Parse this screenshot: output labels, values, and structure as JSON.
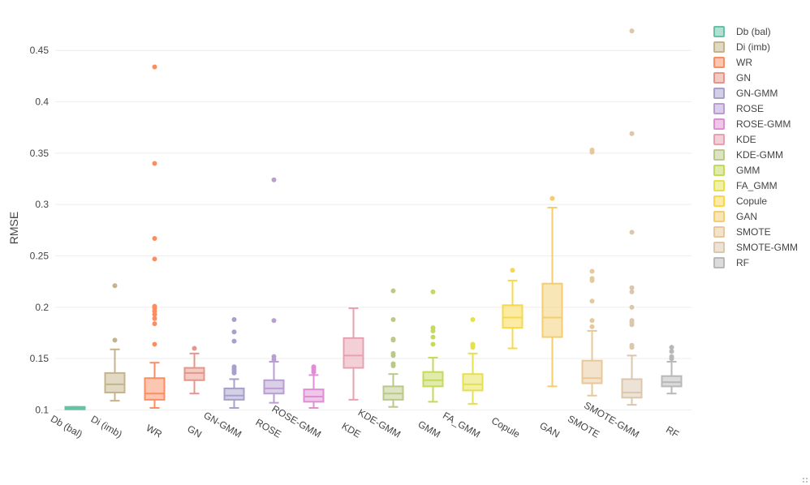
{
  "chart_data": {
    "type": "box",
    "title": "",
    "xlabel": "",
    "ylabel": "RMSE",
    "ylim": [
      0.0925,
      0.477
    ],
    "yticks": [
      0.1,
      0.15,
      0.2,
      0.25,
      0.3,
      0.35,
      0.4,
      0.45
    ],
    "ytick_labels": [
      "0.1",
      "0.15",
      "0.2",
      "0.25",
      "0.3",
      "0.35",
      "0.4",
      "0.45"
    ],
    "series": [
      {
        "name": "Db (bal)",
        "color": "#66c2a5",
        "q1": 0.1015,
        "median": 0.102,
        "q3": 0.103,
        "whisker_low": 0.1015,
        "whisker_high": 0.103,
        "outliers": []
      },
      {
        "name": "Di (imb)",
        "color": "#c5b48a",
        "q1": 0.117,
        "median": 0.125,
        "q3": 0.136,
        "whisker_low": 0.109,
        "whisker_high": 0.159,
        "outliers": [
          0.168,
          0.221
        ]
      },
      {
        "name": "WR",
        "color": "#fc8d62",
        "q1": 0.11,
        "median": 0.116,
        "q3": 0.131,
        "whisker_low": 0.102,
        "whisker_high": 0.146,
        "outliers": [
          0.164,
          0.184,
          0.189,
          0.193,
          0.196,
          0.199,
          0.201,
          0.247,
          0.267,
          0.34,
          0.434
        ]
      },
      {
        "name": "GN",
        "color": "#e7958a",
        "q1": 0.129,
        "median": 0.136,
        "q3": 0.141,
        "whisker_low": 0.116,
        "whisker_high": 0.155,
        "outliers": [
          0.16
        ]
      },
      {
        "name": "GN-GMM",
        "color": "#a89fcb",
        "q1": 0.11,
        "median": 0.114,
        "q3": 0.121,
        "whisker_low": 0.102,
        "whisker_high": 0.13,
        "outliers": [
          0.136,
          0.138,
          0.14,
          0.142,
          0.167,
          0.176,
          0.188
        ]
      },
      {
        "name": "ROSE",
        "color": "#b89ed1",
        "q1": 0.116,
        "median": 0.121,
        "q3": 0.129,
        "whisker_low": 0.107,
        "whisker_high": 0.147,
        "outliers": [
          0.149,
          0.152,
          0.187,
          0.324
        ]
      },
      {
        "name": "ROSE-GMM",
        "color": "#de8fd3",
        "q1": 0.108,
        "median": 0.113,
        "q3": 0.12,
        "whisker_low": 0.102,
        "whisker_high": 0.134,
        "outliers": [
          0.137,
          0.139,
          0.141,
          0.142
        ]
      },
      {
        "name": "KDE",
        "color": "#e8a0b0",
        "q1": 0.141,
        "median": 0.153,
        "q3": 0.17,
        "whisker_low": 0.11,
        "whisker_high": 0.199,
        "outliers": []
      },
      {
        "name": "KDE-GMM",
        "color": "#bac98a",
        "q1": 0.11,
        "median": 0.116,
        "q3": 0.123,
        "whisker_low": 0.103,
        "whisker_high": 0.135,
        "outliers": [
          0.143,
          0.145,
          0.153,
          0.155,
          0.168,
          0.169,
          0.188,
          0.216
        ]
      },
      {
        "name": "GMM",
        "color": "#c4da5a",
        "q1": 0.123,
        "median": 0.129,
        "q3": 0.137,
        "whisker_low": 0.108,
        "whisker_high": 0.151,
        "outliers": [
          0.164,
          0.171,
          0.177,
          0.18,
          0.215
        ]
      },
      {
        "name": "FA_GMM",
        "color": "#e5e050",
        "q1": 0.119,
        "median": 0.125,
        "q3": 0.135,
        "whisker_low": 0.106,
        "whisker_high": 0.155,
        "outliers": [
          0.161,
          0.163,
          0.164,
          0.188
        ]
      },
      {
        "name": "Copule",
        "color": "#f8d84a",
        "q1": 0.18,
        "median": 0.19,
        "q3": 0.202,
        "whisker_low": 0.16,
        "whisker_high": 0.226,
        "outliers": [
          0.236
        ]
      },
      {
        "name": "GAN",
        "color": "#f3cd6e",
        "q1": 0.171,
        "median": 0.19,
        "q3": 0.223,
        "whisker_low": 0.123,
        "whisker_high": 0.297,
        "outliers": [
          0.306
        ]
      },
      {
        "name": "SMOTE",
        "color": "#e8c89a",
        "q1": 0.126,
        "median": 0.131,
        "q3": 0.148,
        "whisker_low": 0.114,
        "whisker_high": 0.177,
        "outliers": [
          0.181,
          0.187,
          0.206,
          0.226,
          0.228,
          0.235,
          0.351,
          0.353
        ]
      },
      {
        "name": "SMOTE-GMM",
        "color": "#dac7ad",
        "q1": 0.112,
        "median": 0.117,
        "q3": 0.13,
        "whisker_low": 0.105,
        "whisker_high": 0.153,
        "outliers": [
          0.161,
          0.163,
          0.183,
          0.185,
          0.187,
          0.2,
          0.215,
          0.219,
          0.273,
          0.369,
          0.469
        ]
      },
      {
        "name": "RF",
        "color": "#b8b8b8",
        "q1": 0.123,
        "median": 0.127,
        "q3": 0.133,
        "whisker_low": 0.116,
        "whisker_high": 0.147,
        "outliers": [
          0.15,
          0.152,
          0.157,
          0.161
        ]
      }
    ],
    "legend": "top-right, vertical",
    "grid": true
  }
}
